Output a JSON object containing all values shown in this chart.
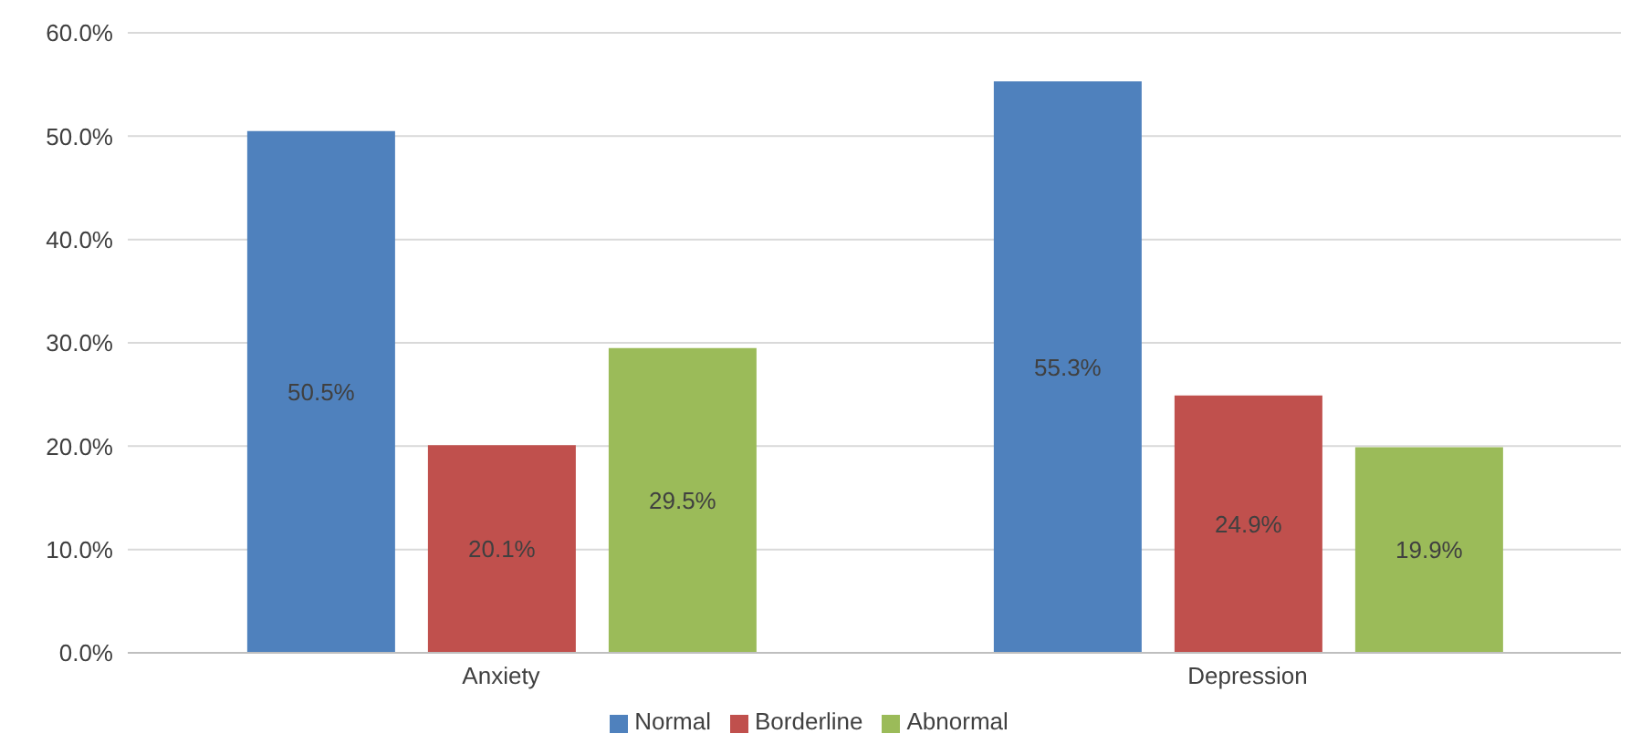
{
  "chart_data": {
    "type": "bar",
    "categories": [
      "Anxiety",
      "Depression"
    ],
    "series": [
      {
        "name": "Normal",
        "color": "#4f81bd",
        "values": [
          50.5,
          55.3
        ],
        "value_labels": [
          "50.5%",
          "55.3%"
        ]
      },
      {
        "name": "Borderline",
        "color": "#c0504d",
        "values": [
          20.1,
          24.9
        ],
        "value_labels": [
          "20.1%",
          "24.9%"
        ]
      },
      {
        "name": "Abnormal",
        "color": "#9bbb59",
        "values": [
          29.5,
          19.9
        ],
        "value_labels": [
          "29.5%",
          "19.9%"
        ]
      }
    ],
    "ylim": [
      0,
      60
    ],
    "yticks": [
      {
        "value": 0,
        "label": "0.0%"
      },
      {
        "value": 10,
        "label": "10.0%"
      },
      {
        "value": 20,
        "label": "20.0%"
      },
      {
        "value": 30,
        "label": "30.0%"
      },
      {
        "value": 40,
        "label": "40.0%"
      },
      {
        "value": 50,
        "label": "50.0%"
      },
      {
        "value": 60,
        "label": "60.0%"
      }
    ],
    "grid": "y",
    "legend": "bottom"
  }
}
